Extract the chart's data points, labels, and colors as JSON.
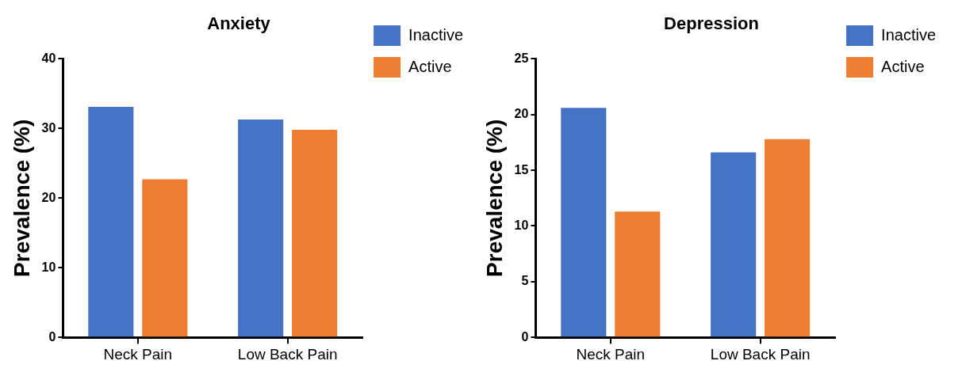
{
  "chart_data": [
    {
      "type": "bar",
      "title": "Anxiety",
      "ylabel": "Prevalence (%)",
      "categories": [
        "Neck Pain",
        "Low Back Pain"
      ],
      "series": [
        {
          "name": "Inactive",
          "color": "#4472c4",
          "values": [
            33.1,
            31.3
          ]
        },
        {
          "name": "Active",
          "color": "#ed7d31",
          "values": [
            22.7,
            29.8
          ]
        }
      ],
      "ylim": [
        0,
        40
      ],
      "yticks": [
        0,
        10,
        20,
        30,
        40
      ],
      "grid": false,
      "legend": "top right"
    },
    {
      "type": "bar",
      "title": "Depression",
      "ylabel": "Prevalence (%)",
      "categories": [
        "Neck Pain",
        "Low Back Pain"
      ],
      "series": [
        {
          "name": "Inactive",
          "color": "#4472c4",
          "values": [
            20.6,
            16.6
          ]
        },
        {
          "name": "Active",
          "color": "#ed7d31",
          "values": [
            11.3,
            17.8
          ]
        }
      ],
      "ylim": [
        0,
        25
      ],
      "yticks": [
        0,
        5,
        10,
        15,
        20,
        25
      ],
      "grid": false,
      "legend": "top right"
    }
  ]
}
